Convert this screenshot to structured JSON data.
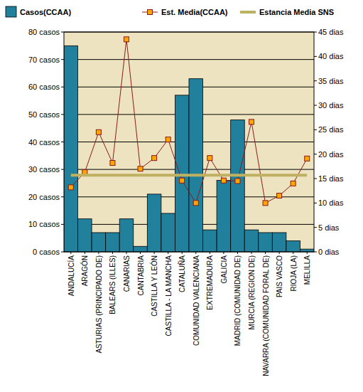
{
  "chart_data": {
    "type": "bar",
    "categories": [
      "ANDALUCÍA",
      "ARAGÓN",
      "ASTURIAS (PRINCIPADO DE)",
      "BALEARS (ILLES)",
      "CANARIAS",
      "CANTABRIA",
      "CASTILLA Y LEÓN",
      "CASTILLA - LA MANCHA",
      "CATALUÑA",
      "COMUNIDAD VALENCIANA",
      "EXTREMADURA",
      "GALICIA",
      "MADRID (COMUNIDAD DE)",
      "MURCIA (REGION DE)",
      "NAVARRA (COMUNIDAD FORAL DE)",
      "PAIS VASCO",
      "RIOJA (LA)",
      "MELILLA"
    ],
    "series": [
      {
        "name": "Casos(CCAA)",
        "type": "bar",
        "color": "#21809b",
        "values": [
          75,
          12,
          7,
          7,
          12,
          2,
          21,
          14,
          57,
          63,
          8,
          26,
          48,
          8,
          7,
          7,
          4,
          1
        ]
      },
      {
        "name": "Est. Media(CCAA)",
        "type": "line",
        "axis": "y2",
        "color": "#8b1a1a",
        "marker": "square",
        "values": [
          13.2,
          16.3,
          24.5,
          18.2,
          43.5,
          17.0,
          19.2,
          23.0,
          14.6,
          10.0,
          19.2,
          14.6,
          14.5,
          26.6,
          10.0,
          11.5,
          14.0,
          19.1
        ]
      },
      {
        "name": "Estancia Media SNS",
        "type": "line",
        "axis": "y2",
        "color": "#bfb162",
        "values": [
          15.7,
          15.7,
          15.7,
          15.7,
          15.7,
          15.7,
          15.7,
          15.7,
          15.7,
          15.7,
          15.7,
          15.7,
          15.7,
          15.7,
          15.7,
          15.7,
          15.7,
          15.7
        ]
      }
    ],
    "ylim": [
      0,
      80
    ],
    "yticks": [
      {
        "value": 0,
        "label": "0 casos"
      },
      {
        "value": 10,
        "label": "10 casos"
      },
      {
        "value": 20,
        "label": "20 casos"
      },
      {
        "value": 30,
        "label": "30 casos"
      },
      {
        "value": 40,
        "label": "40 casos"
      },
      {
        "value": 50,
        "label": "50 casos"
      },
      {
        "value": 60,
        "label": "60 casos"
      },
      {
        "value": 70,
        "label": "70 casos"
      },
      {
        "value": 80,
        "label": "80 casos"
      }
    ],
    "y2lim": [
      0,
      45
    ],
    "y2ticks": [
      {
        "value": 0,
        "label": "0 dias"
      },
      {
        "value": 5,
        "label": "5 dias"
      },
      {
        "value": 10,
        "label": "10 dias"
      },
      {
        "value": 15,
        "label": "15 dias"
      },
      {
        "value": 20,
        "label": "20 dias"
      },
      {
        "value": 25,
        "label": "25 dias"
      },
      {
        "value": 30,
        "label": "30 dias"
      },
      {
        "value": 35,
        "label": "35 dias"
      },
      {
        "value": 40,
        "label": "40 dias"
      },
      {
        "value": 45,
        "label": "45 dias"
      }
    ],
    "grid": true,
    "legend": "top"
  }
}
